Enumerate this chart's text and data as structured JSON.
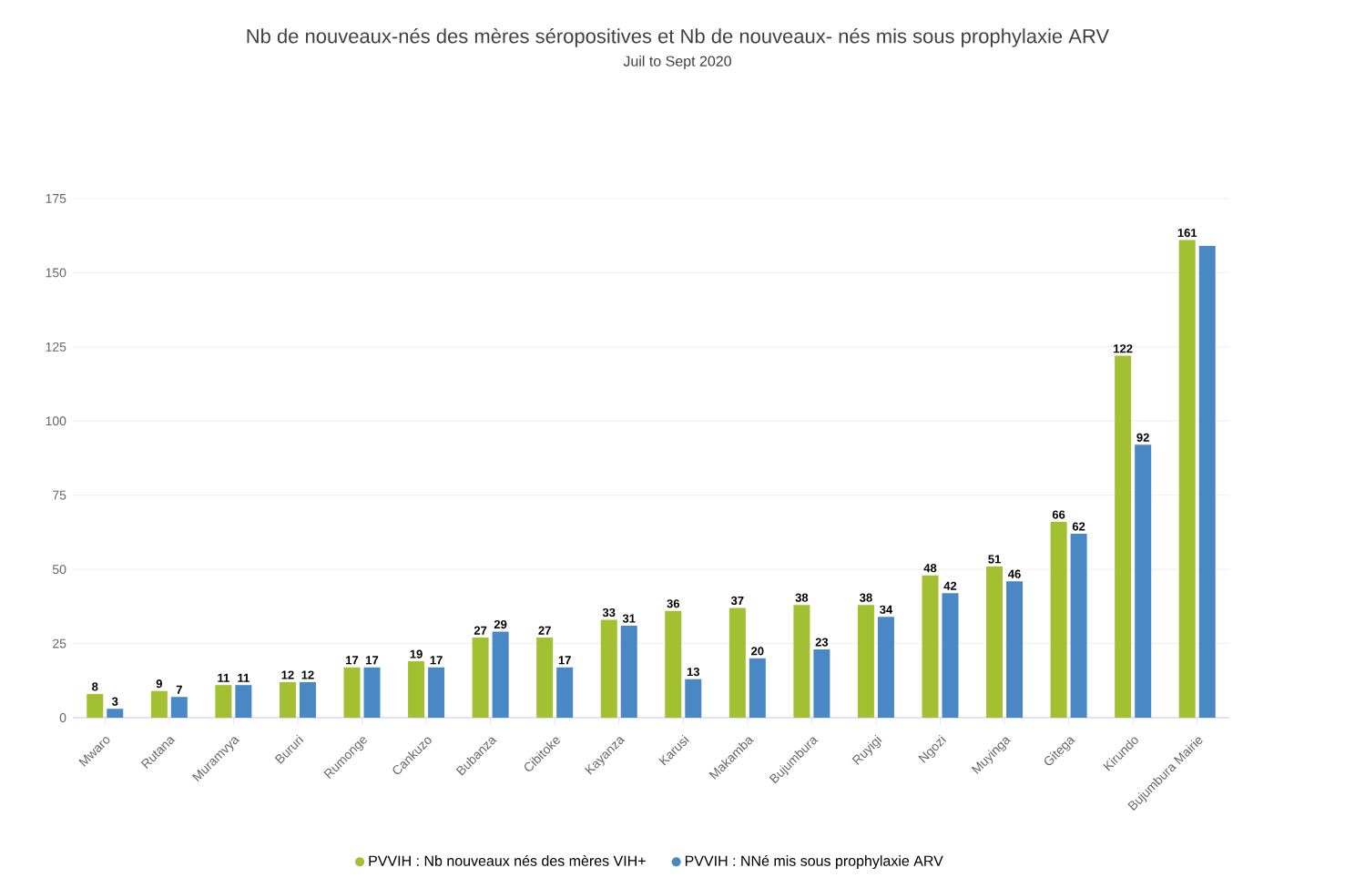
{
  "chart_data": {
    "type": "bar",
    "title": "Nb de nouveaux-nés des mères séropositives et Nb de nouveaux- nés mis sous prophylaxie ARV",
    "subtitle": "Juil to Sept 2020",
    "categories": [
      "Mwaro",
      "Rutana",
      "Muramvya",
      "Bururi",
      "Rumonge",
      "Cankuzo",
      "Bubanza",
      "Cibitoke",
      "Kayanza",
      "Karusi",
      "Makamba",
      "Bujumbura",
      "Ruyigi",
      "Ngozi",
      "Muyinga",
      "Gitega",
      "Kirundo",
      "Bujumbura Mairie"
    ],
    "series": [
      {
        "name": "PVVIH : Nb nouveaux nés des mères VIH+",
        "color": "#a3bf32",
        "values": [
          8,
          9,
          11,
          12,
          17,
          19,
          27,
          27,
          33,
          36,
          37,
          38,
          38,
          48,
          51,
          66,
          122,
          161
        ],
        "value_labels": [
          "8",
          "9",
          "11",
          "12",
          "17",
          "19",
          "27",
          "27",
          "33",
          "36",
          "37",
          "38",
          "38",
          "48",
          "51",
          "66",
          "122",
          "161"
        ]
      },
      {
        "name": "PVVIH : NNé mis sous prophylaxie ARV",
        "color": "#4a88c5",
        "values": [
          3,
          7,
          11,
          12,
          17,
          17,
          29,
          17,
          31,
          13,
          20,
          23,
          34,
          42,
          46,
          62,
          92,
          159
        ],
        "value_labels": [
          "3",
          "7",
          "11",
          "12",
          "17",
          "17",
          "29",
          "17",
          "31",
          "13",
          "20",
          "23",
          "34",
          "42",
          "46",
          "62",
          "92",
          null
        ]
      }
    ],
    "ylim": [
      0,
      175
    ],
    "yticks": [
      0,
      25,
      50,
      75,
      100,
      125,
      150,
      175
    ],
    "grid": "y",
    "legend": "bottom"
  }
}
